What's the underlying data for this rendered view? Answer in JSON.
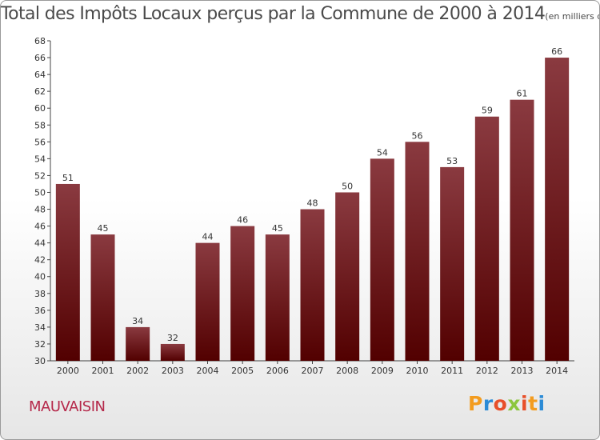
{
  "title": "Total des Impôts Locaux perçus par la Commune de 2000 à 2014",
  "title_unit": "(en milliers d'€)",
  "commune": "MAUVAISIN",
  "logo": {
    "letters": [
      "P",
      "r",
      "o",
      "x",
      "i",
      "t",
      "i"
    ],
    "colors": [
      "#f39c1f",
      "#2c8bd6",
      "#e84f2a",
      "#8cc63e",
      "#e84f2a",
      "#f39c1f",
      "#2c8bd6"
    ]
  },
  "colors": {
    "bar_top": "#8a3a40",
    "bar_bottom": "#520000",
    "axis": "#444444",
    "text": "#333333"
  },
  "chart_data": {
    "type": "bar",
    "categories": [
      "2000",
      "2001",
      "2002",
      "2003",
      "2004",
      "2005",
      "2006",
      "2007",
      "2008",
      "2009",
      "2010",
      "2011",
      "2012",
      "2013",
      "2014"
    ],
    "values": [
      51,
      45,
      34,
      32,
      44,
      46,
      45,
      48,
      50,
      54,
      56,
      53,
      59,
      61,
      66
    ],
    "ylim": [
      30,
      68
    ],
    "yticks": [
      30,
      32,
      34,
      36,
      38,
      40,
      42,
      44,
      46,
      48,
      50,
      52,
      54,
      56,
      58,
      60,
      62,
      64,
      66,
      68
    ],
    "grid": false,
    "data_labels": true
  }
}
